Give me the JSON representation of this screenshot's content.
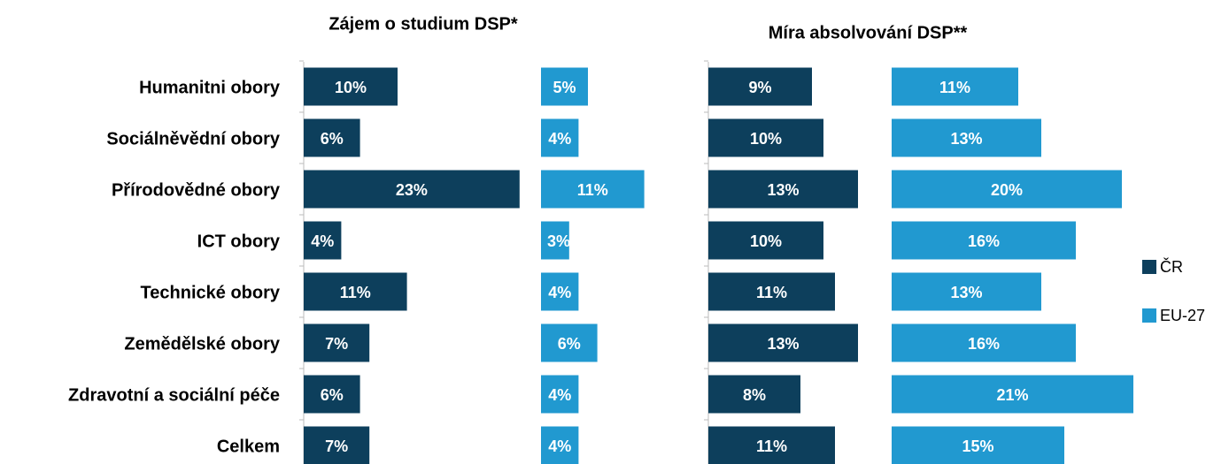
{
  "chart_data": {
    "type": "bar",
    "orientation": "horizontal",
    "categories": [
      "Humanitni obory",
      "Sociálněvědní obory",
      "Přírodovědné obory",
      "ICT obory",
      "Technické obory",
      "Zemědělské obory",
      "Zdravotní a sociální péče",
      "Celkem"
    ],
    "series": [
      {
        "name": "ČR",
        "color": "#0d3f5c"
      },
      {
        "name": "EU-27",
        "color": "#2199d0"
      }
    ],
    "legend": "right",
    "panels": [
      {
        "title": "Zájem o studium DSP*",
        "values": [
          [
            10,
            6,
            23,
            4,
            11,
            7,
            6,
            7
          ],
          [
            5,
            4,
            11,
            3,
            4,
            6,
            4,
            4
          ]
        ],
        "value_labels": [
          [
            "10%",
            "6%",
            "23%",
            "4%",
            "11%",
            "7%",
            "6%",
            "7%"
          ],
          [
            "5%",
            "4%",
            "11%",
            "3%",
            "4%",
            "6%",
            "4%",
            "4%"
          ]
        ]
      },
      {
        "title": "Míra absolvování DSP**",
        "values": [
          [
            9,
            10,
            13,
            10,
            11,
            13,
            8,
            11
          ],
          [
            11,
            13,
            20,
            16,
            13,
            16,
            21,
            15
          ]
        ],
        "value_labels": [
          [
            "9%",
            "10%",
            "13%",
            "10%",
            "11%",
            "13%",
            "8%",
            "11%"
          ],
          [
            "11%",
            "13%",
            "20%",
            "16%",
            "13%",
            "16%",
            "21%",
            "15%"
          ]
        ]
      }
    ]
  }
}
